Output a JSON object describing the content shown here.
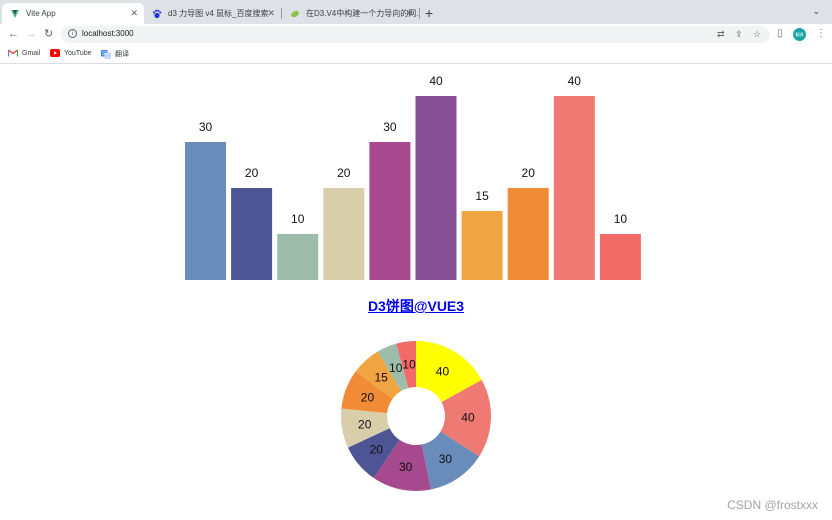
{
  "browser": {
    "tabs": [
      {
        "title": "Vite App",
        "icon": "vite-icon",
        "active": true
      },
      {
        "title": "d3 力导图 v4 鼠标_百度搜索",
        "icon": "baidu-paw-icon",
        "active": false
      },
      {
        "title": "在D3.V4中构建一个力导向的网…",
        "icon": "leaf-icon",
        "active": false
      }
    ],
    "new_tab_label": "+",
    "tab_menu_label": "⌄",
    "address": {
      "url": "localhost:3000"
    },
    "profile_label": "翻译",
    "bookmarks": [
      {
        "label": "Gmail",
        "icon": "gmail-icon"
      },
      {
        "label": "YouTube",
        "icon": "youtube-icon"
      },
      {
        "label": "翻译",
        "icon": "translate-icon"
      }
    ]
  },
  "page": {
    "pie_title": "D3饼图@VUE3",
    "watermark": "CSDN @frostxxx"
  },
  "colors": {
    "bar_colors": [
      "#6a8cbb",
      "#4e5594",
      "#9dbca9",
      "#d9ceaa",
      "#a7498f",
      "#864e93",
      "#f1a542",
      "#f28b35",
      "#ef7a73",
      "#f26b66"
    ],
    "pie_colors": [
      "#ffff00",
      "#ef7a73",
      "#6a8cbb",
      "#a7498f",
      "#4e5594",
      "#d9ceaa",
      "#f28b35",
      "#f1a542",
      "#9dbca9",
      "#f26b66"
    ]
  },
  "chart_data": [
    {
      "type": "bar",
      "values": [
        30,
        20,
        10,
        20,
        30,
        40,
        15,
        20,
        40,
        10
      ]
    },
    {
      "type": "pie",
      "title": "D3饼图@VUE3",
      "values": [
        40,
        40,
        30,
        30,
        20,
        20,
        20,
        15,
        10,
        10
      ]
    }
  ]
}
